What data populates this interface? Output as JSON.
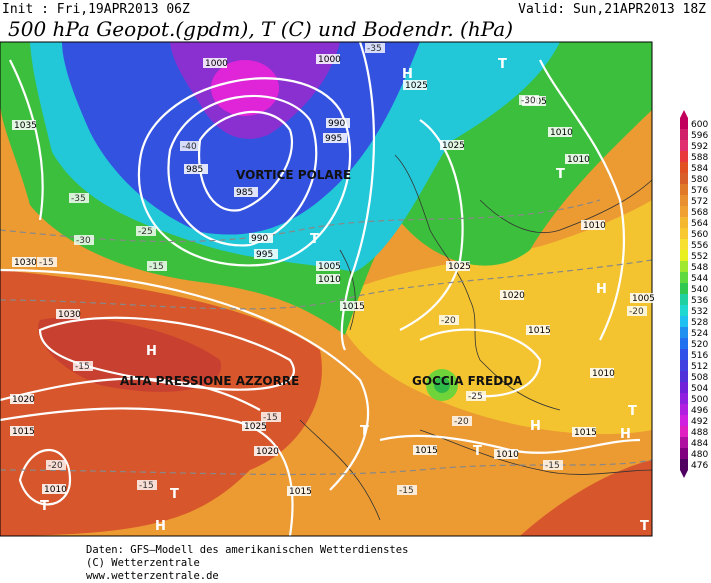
{
  "header": {
    "init": "Init : Fri,19APR2013 06Z",
    "valid": "Valid: Sun,21APR2013 18Z",
    "title": "500 hPa Geopot.(gpdm), T (C) und Bodendr. (hPa)"
  },
  "annotations": [
    "VORTICE POLARE",
    "ALTA PRESSIONE AZZORRE",
    "GOCCIA FREDDA"
  ],
  "map_labels": {
    "pressure": [
      1000,
      1000,
      1035,
      995,
      990,
      985,
      985,
      990,
      995,
      1005,
      1010,
      1015,
      1025,
      1025,
      1025,
      1020,
      1015,
      1010,
      1010,
      1005,
      1010,
      1005,
      1010,
      1030,
      1030,
      1020,
      1015,
      1010,
      1025,
      1020,
      1015,
      1015,
      1010,
      1015
    ],
    "temperature": [
      -35,
      -30,
      -40,
      -35,
      -30,
      -25,
      -15,
      -15,
      -15,
      -20,
      -15,
      -20,
      -20,
      -25,
      -15,
      -15,
      -20,
      -15
    ],
    "centers": [
      "H",
      "H",
      "H",
      "H",
      "H",
      "H",
      "T",
      "T",
      "T",
      "T",
      "T",
      "T",
      "T",
      "T",
      "T"
    ]
  },
  "legend": {
    "scale": [
      600,
      596,
      592,
      588,
      584,
      580,
      576,
      572,
      568,
      564,
      560,
      556,
      552,
      548,
      544,
      540,
      536,
      532,
      528,
      524,
      520,
      516,
      512,
      508,
      504,
      500,
      496,
      492,
      488,
      484,
      480,
      476
    ],
    "colors": [
      "#c0005a",
      "#d0206a",
      "#e03070",
      "#e83a3a",
      "#e05020",
      "#d86028",
      "#e07a28",
      "#e89030",
      "#f0a030",
      "#f4b830",
      "#f8c830",
      "#f8e030",
      "#e8f020",
      "#a0e830",
      "#60d840",
      "#30c850",
      "#20d0a0",
      "#20d8d0",
      "#20c0f0",
      "#2090f0",
      "#2070f0",
      "#3050e8",
      "#4040e0",
      "#5030d8",
      "#7020d8",
      "#9020e0",
      "#b020e0",
      "#d020e0",
      "#e020c0",
      "#b010a0",
      "#800080",
      "#500060"
    ]
  },
  "footer": {
    "lines": [
      "Daten: GFS–Modell des amerikanischen Wetterdienstes",
      "(C) Wetterzentrale",
      "www.wetterzentrale.de"
    ]
  }
}
